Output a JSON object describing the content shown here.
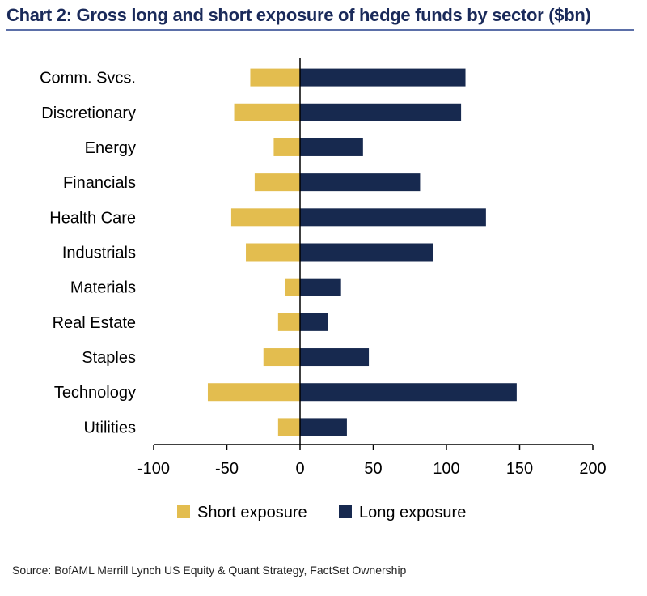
{
  "title": "Chart 2: Gross long and short exposure of hedge funds by sector ($bn)",
  "source": "Source: BofAML Merrill Lynch US Equity & Quant Strategy, FactSet Ownership",
  "colors": {
    "short": "#e3bd4f",
    "long": "#17294f",
    "title": "#1a2a5a",
    "axis": "#000000"
  },
  "chart_data": {
    "type": "bar",
    "orientation": "horizontal",
    "title": "Chart 2: Gross long and short exposure of hedge funds by sector ($bn)",
    "xlabel": "",
    "ylabel": "",
    "xlim": [
      -100,
      200
    ],
    "xticks": [
      -100,
      -50,
      0,
      50,
      100,
      150,
      200
    ],
    "xtick_labels": [
      "-100",
      "-50",
      "0",
      "50",
      "100",
      "150",
      "200"
    ],
    "categories": [
      "Comm. Svcs.",
      "Discretionary",
      "Energy",
      "Financials",
      "Health Care",
      "Industrials",
      "Materials",
      "Real Estate",
      "Staples",
      "Technology",
      "Utilities"
    ],
    "series": [
      {
        "name": "Short exposure",
        "color": "#e3bd4f",
        "values": [
          -34,
          -45,
          -18,
          -31,
          -47,
          -37,
          -10,
          -15,
          -25,
          -63,
          -15
        ]
      },
      {
        "name": "Long exposure",
        "color": "#17294f",
        "values": [
          113,
          110,
          43,
          82,
          127,
          91,
          28,
          19,
          47,
          148,
          32
        ]
      }
    ],
    "legend": {
      "position": "bottom",
      "entries": [
        "Short exposure",
        "Long exposure"
      ]
    },
    "grid": false
  }
}
